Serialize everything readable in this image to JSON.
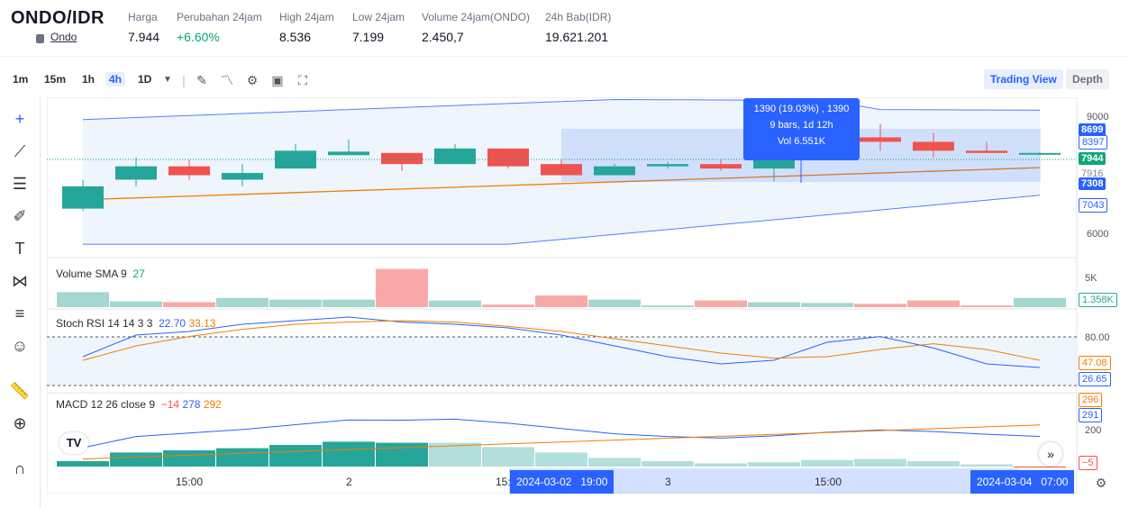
{
  "header": {
    "pair": "ONDO/IDR",
    "sub": "Ondo",
    "stats": [
      {
        "label": "Harga",
        "value": "7.944"
      },
      {
        "label": "Perubahan 24jam",
        "value": "+6.60%"
      },
      {
        "label": "High 24jam",
        "value": "8.536"
      },
      {
        "label": "Low 24jam",
        "value": "7.199"
      },
      {
        "label": "Volume 24jam(ONDO)",
        "value": "2.450,7"
      },
      {
        "label": "24h Bab(IDR)",
        "value": "19.621.201"
      }
    ]
  },
  "toolbar": {
    "timeframes": [
      "1m",
      "15m",
      "1h",
      "4h",
      "1D"
    ],
    "active": "4h",
    "tabs": [
      "Trading View",
      "Depth"
    ],
    "active_tab": "Trading View"
  },
  "tooltip": {
    "line1": "1390 (19.03%) , 1390",
    "line2": "9 bars, 1d 12h",
    "line3": "Vol 6.551K"
  },
  "price_axis": {
    "ticks": [
      "9000",
      "6000"
    ],
    "labels": [
      "8699",
      "8397",
      "7944",
      "7916",
      "7308",
      "7043"
    ]
  },
  "volume": {
    "title": "Volume SMA 9",
    "value": "27",
    "ticks": [
      "5K"
    ],
    "label": "1.358K"
  },
  "stoch": {
    "title": "Stoch RSI 14 14 3 3",
    "k": "22.70",
    "d": "33.13",
    "ticks": [
      "80.00"
    ],
    "labels": [
      "47.08",
      "26.65"
    ]
  },
  "macd": {
    "title": "MACD 12 26 close 9",
    "hist": "−14",
    "macd": "278",
    "signal": "292",
    "ticks": [
      "200"
    ],
    "labels": [
      "296",
      "291",
      "−5"
    ]
  },
  "xaxis": {
    "labels": [
      "15:00",
      "2",
      "15:",
      "3",
      "15:00"
    ],
    "range_start": "2024-03-02   19:00",
    "range_end": "2024-03-04   07:00"
  },
  "logo": "TV",
  "colors": {
    "up": "#26a69a",
    "down": "#ef5350",
    "accent": "#2962ff",
    "bb": "#2962ff",
    "sma": "#f57c00"
  },
  "chart_data": {
    "type": "candlestick",
    "candles": [
      {
        "o": 6700,
        "h": 7350,
        "l": 6650,
        "c": 7200
      },
      {
        "o": 7350,
        "h": 7850,
        "l": 7200,
        "c": 7650
      },
      {
        "o": 7650,
        "h": 7800,
        "l": 7350,
        "c": 7450
      },
      {
        "o": 7350,
        "h": 7700,
        "l": 7200,
        "c": 7500
      },
      {
        "o": 7600,
        "h": 8150,
        "l": 7600,
        "c": 8000
      },
      {
        "o": 7900,
        "h": 8250,
        "l": 7900,
        "c": 7980
      },
      {
        "o": 7950,
        "h": 7950,
        "l": 7550,
        "c": 7700
      },
      {
        "o": 7700,
        "h": 8150,
        "l": 7700,
        "c": 8050
      },
      {
        "o": 8050,
        "h": 8050,
        "l": 7600,
        "c": 7650
      },
      {
        "o": 7700,
        "h": 7800,
        "l": 7450,
        "c": 7450
      },
      {
        "o": 7450,
        "h": 7700,
        "l": 7450,
        "c": 7650
      },
      {
        "o": 7650,
        "h": 7750,
        "l": 7600,
        "c": 7700
      },
      {
        "o": 7700,
        "h": 7800,
        "l": 7550,
        "c": 7600
      },
      {
        "o": 7600,
        "h": 8100,
        "l": 7308,
        "c": 7850
      },
      {
        "o": 7850,
        "h": 8400,
        "l": 7800,
        "c": 8300
      },
      {
        "o": 8300,
        "h": 8600,
        "l": 8000,
        "c": 8200
      },
      {
        "o": 8200,
        "h": 8400,
        "l": 7850,
        "c": 8000
      },
      {
        "o": 8000,
        "h": 8200,
        "l": 7950,
        "c": 7950
      },
      {
        "o": 7944,
        "h": 7960,
        "l": 7900,
        "c": 7950
      }
    ],
    "volume": [
      900,
      350,
      300,
      550,
      450,
      450,
      2300,
      400,
      150,
      700,
      450,
      100,
      400,
      300,
      250,
      200,
      400,
      100,
      550
    ],
    "stoch_k": [
      40,
      70,
      75,
      85,
      90,
      95,
      88,
      85,
      80,
      70,
      55,
      40,
      30,
      35,
      60,
      68,
      52,
      30,
      25
    ],
    "stoch_d": [
      35,
      55,
      68,
      78,
      85,
      88,
      90,
      88,
      82,
      75,
      65,
      55,
      45,
      38,
      40,
      50,
      58,
      50,
      35
    ],
    "macd_hist": [
      50,
      130,
      150,
      170,
      200,
      230,
      220,
      220,
      180,
      130,
      80,
      50,
      30,
      40,
      60,
      70,
      50,
      20,
      -5
    ],
    "ylim": [
      5600,
      9200
    ]
  }
}
